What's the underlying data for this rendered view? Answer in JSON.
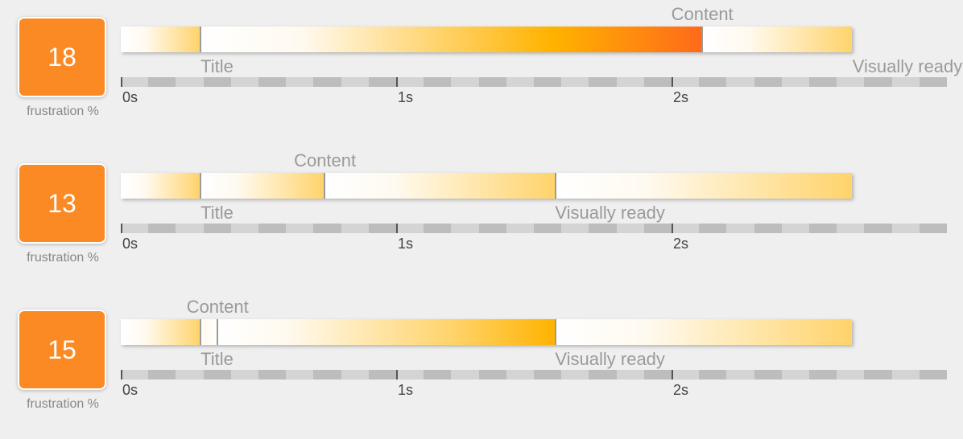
{
  "score_label": "frustration %",
  "milestone_labels": {
    "title": "Title",
    "content": "Content",
    "visually_ready": "Visually ready"
  },
  "chart_data": {
    "type": "timeline",
    "x_unit": "s",
    "x_range": [
      0,
      3
    ],
    "ticks": [
      {
        "value": 0,
        "label": "0s"
      },
      {
        "value": 1,
        "label": "1s"
      },
      {
        "value": 2,
        "label": "2s"
      }
    ],
    "rows": [
      {
        "score": "18",
        "title": 0.29,
        "content": 2.11,
        "visually_ready": 2.66,
        "end": 2.66
      },
      {
        "score": "13",
        "title": 0.29,
        "content": 0.74,
        "visually_ready": 1.58,
        "end": 2.66
      },
      {
        "score": "15",
        "title": 0.29,
        "content": 0.35,
        "visually_ready": 1.58,
        "end": 2.66
      }
    ]
  },
  "colors": {
    "score_box": "#fb8a24",
    "bar_light": "#fffaf0",
    "bar_mid": "#ffd36a",
    "bar_strong": "#ffb300",
    "bar_hot": "#ff6a1a",
    "axis_light": "#d4d4d4",
    "axis_dark": "#bdbdbd"
  }
}
